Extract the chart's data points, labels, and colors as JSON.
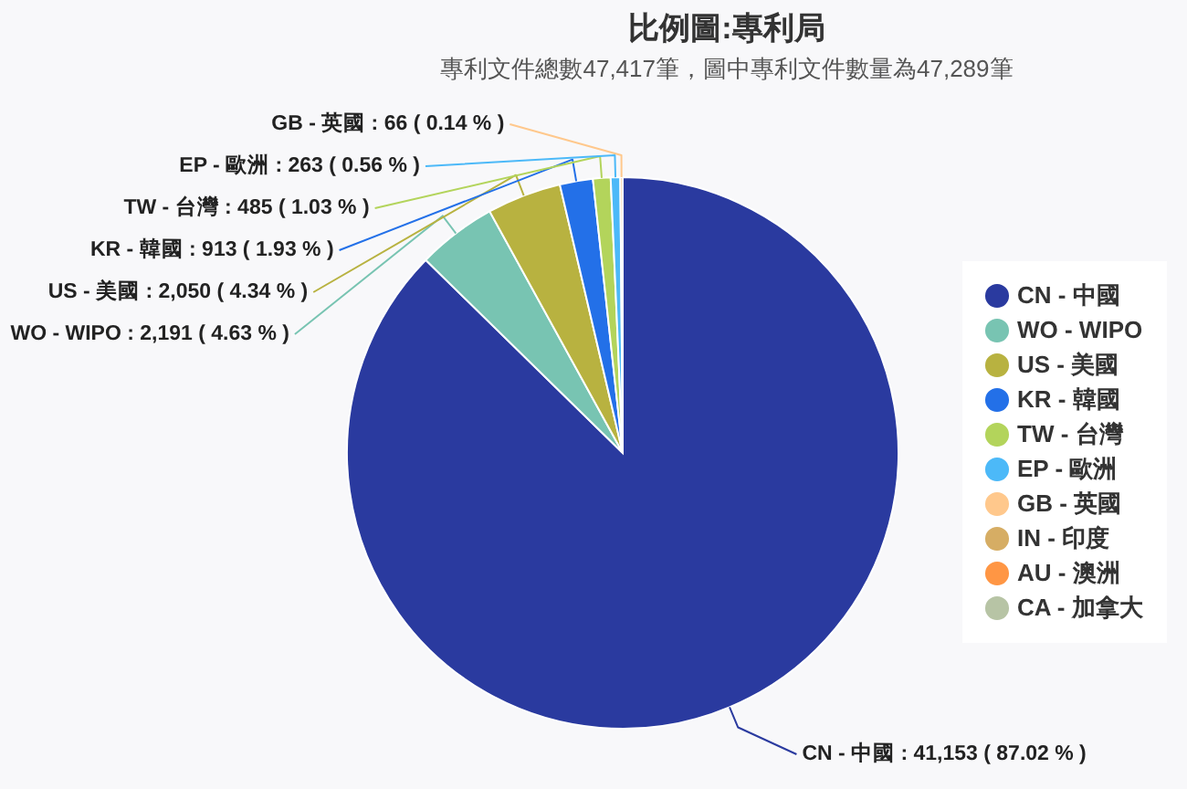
{
  "chart_data": {
    "type": "pie",
    "title": "比例圖:專利局",
    "subtitle": "專利文件總數47,417筆，圖中專利文件數量為47,289筆",
    "categories": [
      "CN - 中國",
      "WO - WIPO",
      "US - 美國",
      "KR - 韓國",
      "TW - 台灣",
      "EP - 歐洲",
      "GB - 英國",
      "IN - 印度",
      "AU - 澳洲",
      "CA - 加拿大"
    ],
    "values": [
      41153,
      2191,
      2050,
      913,
      485,
      263,
      66,
      null,
      null,
      null
    ],
    "colors": [
      "#2a3a9f",
      "#78c4b2",
      "#b8b240",
      "#2370e8",
      "#b3d45b",
      "#4cb9f8",
      "#ffc88c",
      "#d6ad64",
      "#ff9644",
      "#b7c4a5"
    ],
    "value_labels": [
      "CN - 中國 : 41,153 ( 87.02 % )",
      "WO - WIPO : 2,191 ( 4.63 % )",
      "US - 美國 : 2,050 ( 4.34 % )",
      "KR - 韓國 : 913 ( 1.93 % )",
      "TW - 台灣 : 485 ( 1.03 % )",
      "EP - 歐洲 : 263 ( 0.56 % )",
      "GB - 英國 : 66 ( 0.14 % )",
      null,
      null,
      null
    ],
    "legend": "right"
  }
}
